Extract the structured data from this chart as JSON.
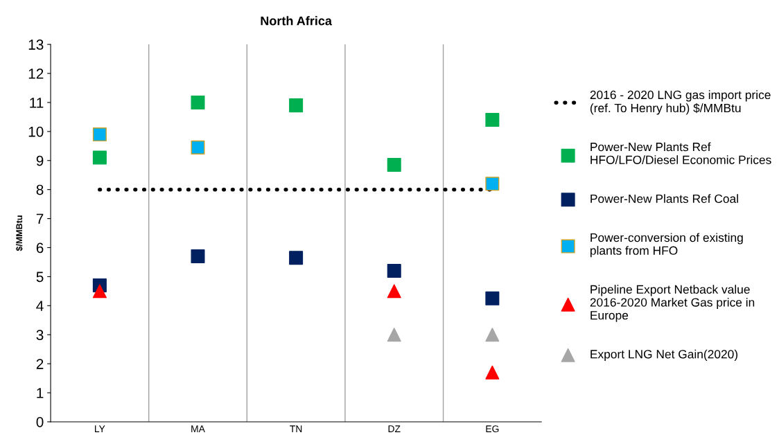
{
  "chart_data": {
    "type": "scatter",
    "title": "North Africa",
    "ylabel": "$/MMBtu",
    "categories": [
      "LY",
      "MA",
      "TN",
      "DZ",
      "EG"
    ],
    "ylim": [
      0,
      13
    ],
    "yticks": [
      0,
      1,
      2,
      3,
      4,
      5,
      6,
      7,
      8,
      9,
      10,
      11,
      12,
      13
    ],
    "grid": "x",
    "legend": "right",
    "marker": "square",
    "series": [
      {
        "name": "2016 - 2020 LNG gas import price (ref. To Henry hub) $/MMBtu",
        "type": "line",
        "line_style": "dotted",
        "marker": "none",
        "color": "#000000",
        "values": [
          8,
          8,
          8,
          8,
          8
        ]
      },
      {
        "name": "Power-New Plants Ref HFO/LFO/Diesel Economic Prices",
        "color": "#00b050",
        "values": [
          9.1,
          11.0,
          10.9,
          8.85,
          10.4
        ]
      },
      {
        "name": "Power-New Plants Ref Coal",
        "color": "#002060",
        "values": [
          4.7,
          5.7,
          5.65,
          5.2,
          4.25
        ]
      },
      {
        "name": "Power-conversion of existing plants from HFO",
        "color": "#00b0f0",
        "values": [
          9.9,
          9.45,
          null,
          null,
          8.2
        ]
      },
      {
        "name": "Pipeline Export Netback value 2016-2020 Market Gas price in Europe",
        "marker": "triangle",
        "color": "#ff0000",
        "values": [
          4.5,
          null,
          null,
          4.5,
          1.7
        ]
      },
      {
        "name": "Export LNG Net Gain(2020)",
        "marker": "triangle",
        "color": "#a6a6a6",
        "values": [
          null,
          null,
          null,
          3.0,
          3.0
        ]
      }
    ]
  }
}
